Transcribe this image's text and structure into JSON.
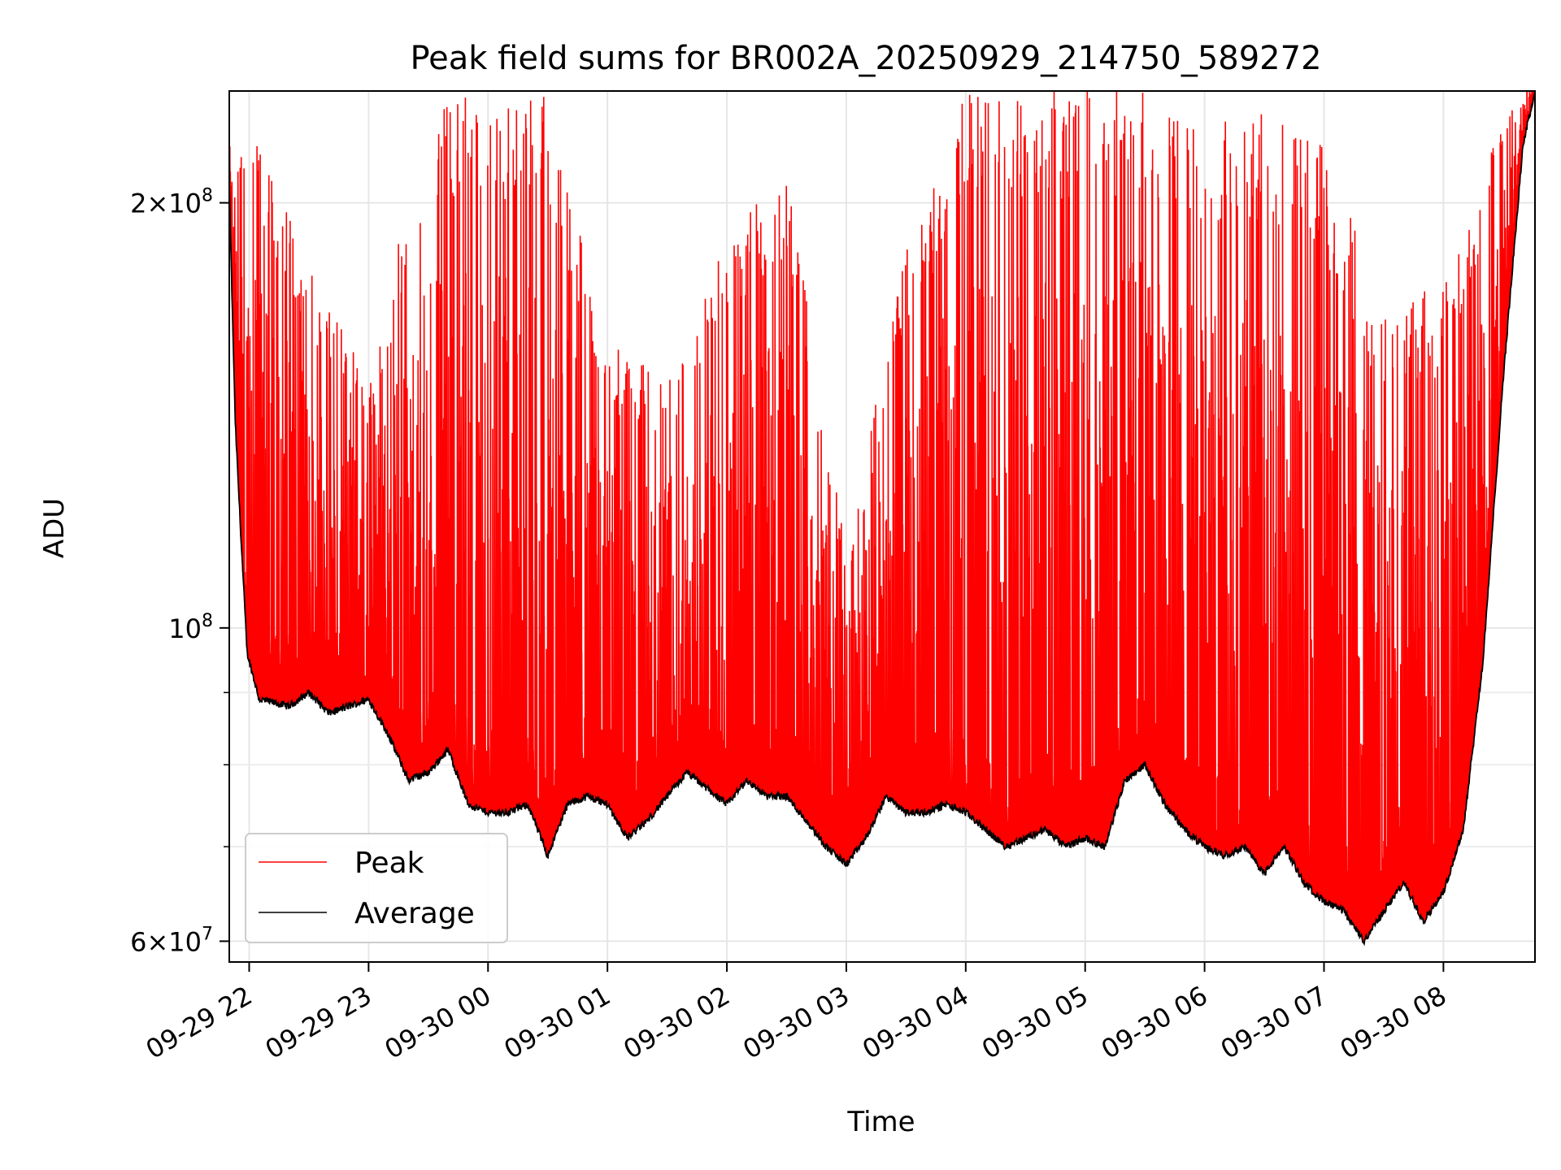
{
  "chart_data": {
    "type": "line",
    "title": "Peak field sums for BR002A_20250929_214750_589272",
    "xlabel": "Time",
    "ylabel": "ADU",
    "yscale": "log",
    "ylim": [
      58000000,
      240000000
    ],
    "xlim": [
      "2025-09-29 21:50",
      "2025-09-30 08:46"
    ],
    "grid": true,
    "legend_position": "lower-left",
    "x_ticks": [
      "09-29 22",
      "09-29 23",
      "09-30 00",
      "09-30 01",
      "09-30 02",
      "09-30 03",
      "09-30 04",
      "09-30 05",
      "09-30 06",
      "09-30 07",
      "09-30 08"
    ],
    "x_tick_times": [
      "2025-09-29 22:00",
      "2025-09-29 23:00",
      "2025-09-30 00:00",
      "2025-09-30 01:00",
      "2025-09-30 02:00",
      "2025-09-30 03:00",
      "2025-09-30 04:00",
      "2025-09-30 05:00",
      "2025-09-30 06:00",
      "2025-09-30 07:00",
      "2025-09-30 08:00"
    ],
    "y_ticks": [
      {
        "value": 60000000,
        "base": "6×10",
        "exp": "7"
      },
      {
        "value": 100000000,
        "base": "10",
        "exp": "8"
      },
      {
        "value": 200000000,
        "base": "2×10",
        "exp": "8"
      }
    ],
    "y_minor_ticks": [
      70000000,
      80000000,
      90000000
    ],
    "series": [
      {
        "name": "Peak",
        "color": "#ff0000",
        "style": "spiky",
        "x": [
          "2025-09-29 21:50",
          "2025-09-29 22:00",
          "2025-09-29 22:30",
          "2025-09-29 23:00",
          "2025-09-29 23:30",
          "2025-09-30 00:00",
          "2025-09-30 00:30",
          "2025-09-30 01:00",
          "2025-09-30 01:30",
          "2025-09-30 02:00",
          "2025-09-30 02:30",
          "2025-09-30 03:00",
          "2025-09-30 03:30",
          "2025-09-30 04:00",
          "2025-09-30 04:30",
          "2025-09-30 05:00",
          "2025-09-30 05:30",
          "2025-09-30 06:00",
          "2025-09-30 06:30",
          "2025-09-30 07:00",
          "2025-09-30 07:30",
          "2025-09-30 08:00",
          "2025-09-30 08:30",
          "2025-09-30 08:46"
        ],
        "y": [
          205000000,
          230000000,
          180000000,
          150000000,
          235000000,
          240000000,
          240000000,
          160000000,
          150000000,
          190000000,
          210000000,
          115000000,
          185000000,
          240000000,
          240000000,
          240000000,
          240000000,
          225000000,
          235000000,
          220000000,
          170000000,
          175000000,
          230000000,
          240000000
        ]
      },
      {
        "name": "Average",
        "color": "#000000",
        "style": "line",
        "x": [
          "2025-09-29 21:50",
          "2025-09-29 21:53",
          "2025-09-29 21:56",
          "2025-09-29 21:59",
          "2025-09-29 22:05",
          "2025-09-29 22:20",
          "2025-09-29 22:30",
          "2025-09-29 22:40",
          "2025-09-29 22:50",
          "2025-09-29 23:00",
          "2025-09-29 23:10",
          "2025-09-29 23:20",
          "2025-09-29 23:30",
          "2025-09-29 23:40",
          "2025-09-29 23:50",
          "2025-09-30 00:00",
          "2025-09-30 00:10",
          "2025-09-30 00:20",
          "2025-09-30 00:30",
          "2025-09-30 00:40",
          "2025-09-30 00:50",
          "2025-09-30 01:00",
          "2025-09-30 01:10",
          "2025-09-30 01:20",
          "2025-09-30 01:30",
          "2025-09-30 01:40",
          "2025-09-30 01:50",
          "2025-09-30 02:00",
          "2025-09-30 02:10",
          "2025-09-30 02:20",
          "2025-09-30 02:30",
          "2025-09-30 02:40",
          "2025-09-30 02:50",
          "2025-09-30 03:00",
          "2025-09-30 03:10",
          "2025-09-30 03:20",
          "2025-09-30 03:30",
          "2025-09-30 03:40",
          "2025-09-30 03:50",
          "2025-09-30 04:00",
          "2025-09-30 04:10",
          "2025-09-30 04:20",
          "2025-09-30 04:30",
          "2025-09-30 04:40",
          "2025-09-30 04:50",
          "2025-09-30 05:00",
          "2025-09-30 05:10",
          "2025-09-30 05:20",
          "2025-09-30 05:30",
          "2025-09-30 05:40",
          "2025-09-30 05:50",
          "2025-09-30 06:00",
          "2025-09-30 06:10",
          "2025-09-30 06:20",
          "2025-09-30 06:30",
          "2025-09-30 06:40",
          "2025-09-30 06:50",
          "2025-09-30 07:00",
          "2025-09-30 07:10",
          "2025-09-30 07:20",
          "2025-09-30 07:30",
          "2025-09-30 07:40",
          "2025-09-30 07:50",
          "2025-09-30 08:00",
          "2025-09-30 08:10",
          "2025-09-30 08:20",
          "2025-09-30 08:30",
          "2025-09-30 08:40",
          "2025-09-30 08:46"
        ],
        "y": [
          205000000,
          140000000,
          115000000,
          96000000,
          89000000,
          88000000,
          90000000,
          87000000,
          88000000,
          89000000,
          84000000,
          78000000,
          79000000,
          82000000,
          75000000,
          74000000,
          74000000,
          75000000,
          69000000,
          75000000,
          76000000,
          75000000,
          71000000,
          73000000,
          76000000,
          79000000,
          77000000,
          75000000,
          78000000,
          76000000,
          76000000,
          73000000,
          70000000,
          68000000,
          71000000,
          76000000,
          74000000,
          74000000,
          75000000,
          74000000,
          72000000,
          70000000,
          71000000,
          72000000,
          70000000,
          71000000,
          70000000,
          78000000,
          80000000,
          75000000,
          72000000,
          70000000,
          69000000,
          70000000,
          67000000,
          70000000,
          66000000,
          64000000,
          63000000,
          60000000,
          63000000,
          66000000,
          62000000,
          65000000,
          72000000,
          95000000,
          150000000,
          220000000,
          240000000
        ]
      }
    ]
  }
}
